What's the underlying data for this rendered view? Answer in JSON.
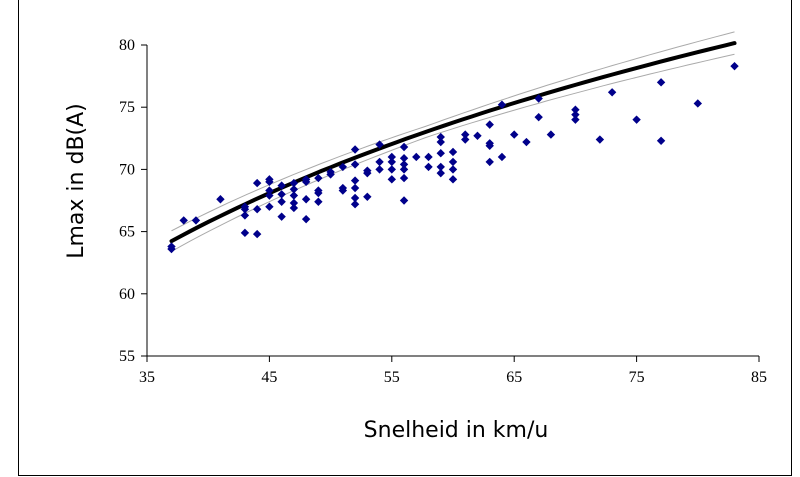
{
  "chart_data": {
    "type": "scatter",
    "title": "",
    "xlabel": "Snelheid in km/u",
    "ylabel": "Lmax in dB(A)",
    "xlim": [
      35,
      85
    ],
    "ylim": [
      55,
      80
    ],
    "xticks": [
      35,
      45,
      55,
      65,
      75,
      85
    ],
    "yticks": [
      55,
      60,
      65,
      70,
      75,
      80
    ],
    "grid": false,
    "legend": "none",
    "colors": {
      "points": "#00008B",
      "trend": "#000000",
      "band": "#AAAAAA"
    },
    "points": [
      [
        37,
        63.6
      ],
      [
        37,
        63.8
      ],
      [
        38,
        65.9
      ],
      [
        39,
        65.9
      ],
      [
        41,
        67.6
      ],
      [
        43,
        64.9
      ],
      [
        43,
        66.3
      ],
      [
        43,
        66.8
      ],
      [
        43,
        67.0
      ],
      [
        44,
        64.8
      ],
      [
        44,
        66.8
      ],
      [
        44,
        68.9
      ],
      [
        45,
        67.0
      ],
      [
        45,
        67.9
      ],
      [
        45,
        68.3
      ],
      [
        45,
        69.0
      ],
      [
        45,
        69.2
      ],
      [
        46,
        66.2
      ],
      [
        46,
        67.4
      ],
      [
        46,
        68.0
      ],
      [
        46,
        68.7
      ],
      [
        47,
        66.9
      ],
      [
        47,
        67.3
      ],
      [
        47,
        67.9
      ],
      [
        47,
        68.4
      ],
      [
        47,
        68.9
      ],
      [
        48,
        66.0
      ],
      [
        48,
        67.6
      ],
      [
        48,
        69.0
      ],
      [
        48,
        69.2
      ],
      [
        49,
        67.4
      ],
      [
        49,
        68.1
      ],
      [
        49,
        68.3
      ],
      [
        49,
        69.3
      ],
      [
        50,
        69.6
      ],
      [
        50,
        69.8
      ],
      [
        51,
        68.3
      ],
      [
        51,
        68.5
      ],
      [
        51,
        70.2
      ],
      [
        52,
        67.2
      ],
      [
        52,
        67.7
      ],
      [
        52,
        68.5
      ],
      [
        52,
        69.1
      ],
      [
        52,
        70.4
      ],
      [
        52,
        71.6
      ],
      [
        53,
        67.8
      ],
      [
        53,
        69.7
      ],
      [
        53,
        69.9
      ],
      [
        54,
        70.0
      ],
      [
        54,
        70.6
      ],
      [
        54,
        72.0
      ],
      [
        55,
        69.2
      ],
      [
        55,
        70.0
      ],
      [
        55,
        70.6
      ],
      [
        55,
        71.0
      ],
      [
        56,
        67.5
      ],
      [
        56,
        69.3
      ],
      [
        56,
        70.0
      ],
      [
        56,
        70.4
      ],
      [
        56,
        70.9
      ],
      [
        56,
        71.8
      ],
      [
        57,
        71.0
      ],
      [
        58,
        70.2
      ],
      [
        58,
        71.0
      ],
      [
        59,
        69.7
      ],
      [
        59,
        70.2
      ],
      [
        59,
        71.3
      ],
      [
        59,
        72.2
      ],
      [
        59,
        72.6
      ],
      [
        60,
        69.2
      ],
      [
        60,
        70.0
      ],
      [
        60,
        70.6
      ],
      [
        60,
        71.4
      ],
      [
        61,
        72.4
      ],
      [
        61,
        72.8
      ],
      [
        62,
        72.7
      ],
      [
        63,
        70.6
      ],
      [
        63,
        71.9
      ],
      [
        63,
        72.1
      ],
      [
        63,
        73.6
      ],
      [
        64,
        71.0
      ],
      [
        64,
        75.2
      ],
      [
        65,
        72.8
      ],
      [
        66,
        72.2
      ],
      [
        67,
        74.2
      ],
      [
        67,
        75.7
      ],
      [
        68,
        72.8
      ],
      [
        70,
        74.0
      ],
      [
        70,
        74.4
      ],
      [
        70,
        74.8
      ],
      [
        72,
        72.4
      ],
      [
        73,
        76.2
      ],
      [
        75,
        74.0
      ],
      [
        77,
        72.3
      ],
      [
        77,
        77.0
      ],
      [
        80,
        75.3
      ],
      [
        83,
        78.3
      ]
    ],
    "trend": {
      "type": "log",
      "a": 19.7,
      "b": -6.9,
      "x_from": 37,
      "x_to": 83
    }
  }
}
